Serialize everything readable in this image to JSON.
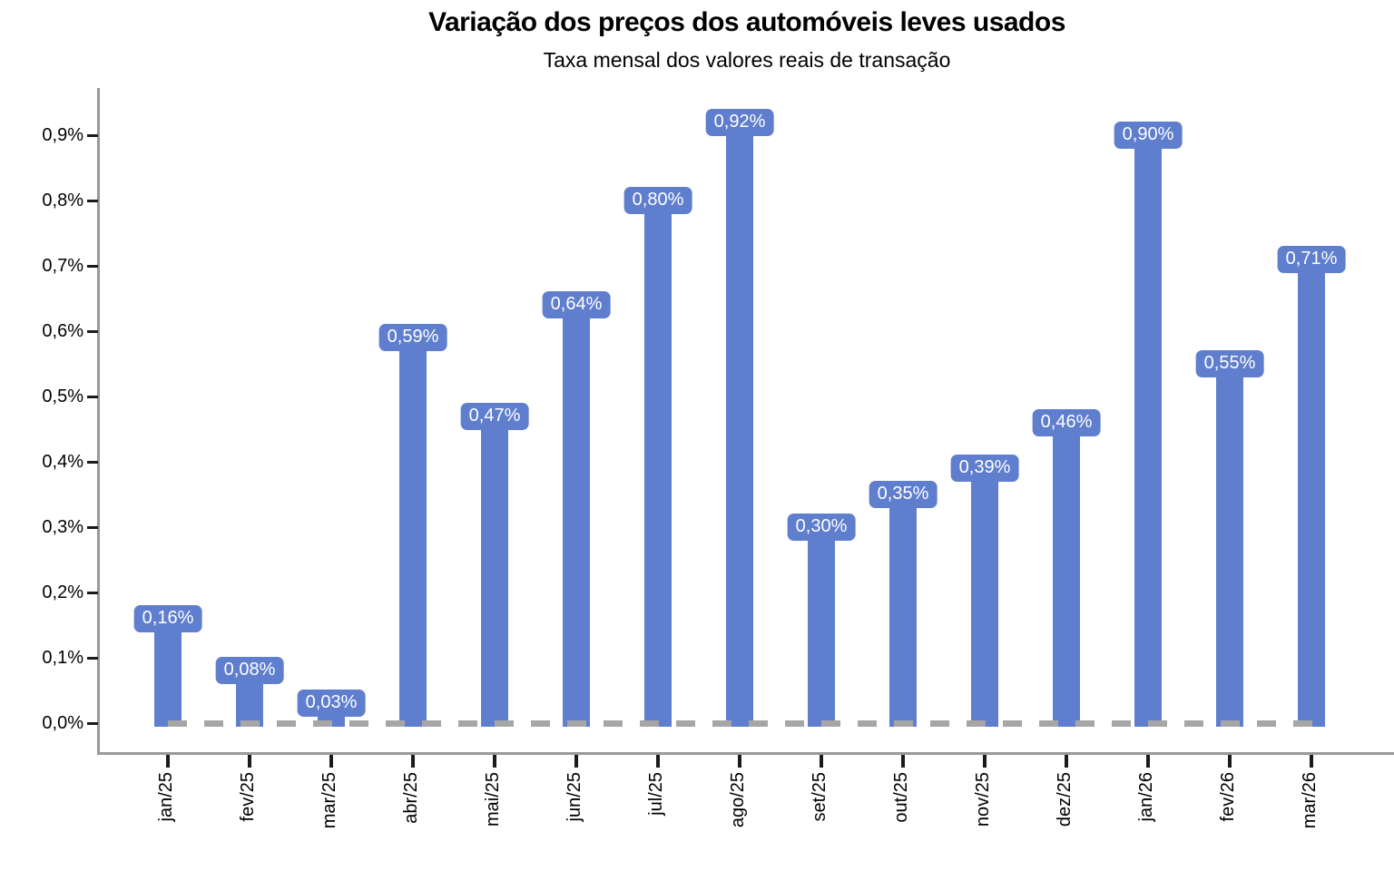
{
  "chart_data": {
    "type": "bar",
    "title": "Variação dos preços dos automóveis leves usados",
    "subtitle": "Taxa mensal dos valores reais de transação",
    "categories": [
      "jan/25",
      "fev/25",
      "mar/25",
      "abr/25",
      "mai/25",
      "jun/25",
      "jul/25",
      "ago/25",
      "set/25",
      "out/25",
      "nov/25",
      "dez/25",
      "jan/26",
      "fev/26",
      "mar/26"
    ],
    "values": [
      0.16,
      0.08,
      0.03,
      0.59,
      0.47,
      0.64,
      0.8,
      0.92,
      0.3,
      0.35,
      0.39,
      0.46,
      0.9,
      0.55,
      0.71
    ],
    "bar_labels": [
      "0,16%",
      "0,08%",
      "0,03%",
      "0,59%",
      "0,47%",
      "0,64%",
      "0,80%",
      "0,92%",
      "0,30%",
      "0,35%",
      "0,39%",
      "0,46%",
      "0,90%",
      "0,55%",
      "0,71%"
    ],
    "y_tick_labels": [
      "0,0%",
      "0,1%",
      "0,2%",
      "0,3%",
      "0,4%",
      "0,5%",
      "0,6%",
      "0,7%",
      "0,8%",
      "0,9%"
    ],
    "y_tick_values": [
      0.0,
      0.1,
      0.2,
      0.3,
      0.4,
      0.5,
      0.6,
      0.7,
      0.8,
      0.9
    ],
    "xlabel": "",
    "ylabel": "",
    "ylim": [
      0,
      0.97
    ],
    "grid": false,
    "legend_position": "none",
    "zero_line_style": "dashed",
    "colors": {
      "bar": "#5F7ECD",
      "label_bg": "#5F7ECD",
      "label_text": "#FFFFFF",
      "axis_line": "#999999",
      "tick_mark": "#1A1A1A",
      "zero_line": "#A6A6A6",
      "text": "#000000"
    }
  }
}
